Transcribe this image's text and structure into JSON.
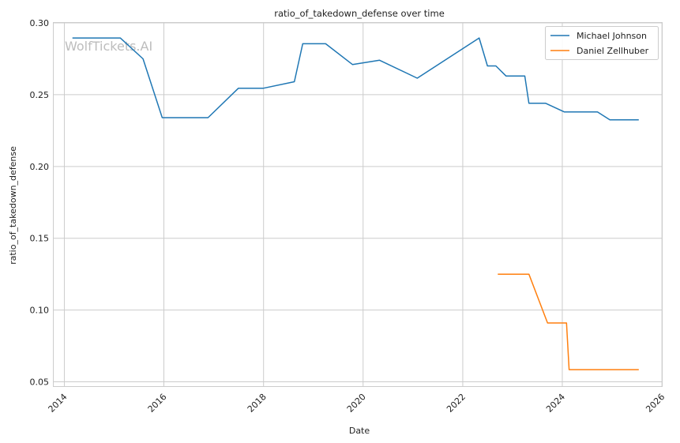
{
  "watermark": "WolfTickets.AI",
  "chart_data": {
    "type": "line",
    "title": "ratio_of_takedown_defense over time",
    "xlabel": "Date",
    "ylabel": "ratio_of_takedown_defense",
    "xlim": [
      "2013-10-15",
      "2025-12-31"
    ],
    "ylim": [
      0.047,
      0.3
    ],
    "xticks": [
      "2014",
      "2016",
      "2018",
      "2020",
      "2022",
      "2024",
      "2026"
    ],
    "yticks": [
      "0.05",
      "0.10",
      "0.15",
      "0.20",
      "0.25",
      "0.30"
    ],
    "grid": true,
    "legend_position": "top-right",
    "series": [
      {
        "name": "Michael Johnson",
        "color": "#1f77b4",
        "points": [
          [
            "2014-03-01",
            0.2895
          ],
          [
            "2015-02-15",
            0.2895
          ],
          [
            "2015-08-01",
            0.275
          ],
          [
            "2015-12-20",
            0.234
          ],
          [
            "2016-11-20",
            0.234
          ],
          [
            "2017-07-01",
            0.2545
          ],
          [
            "2018-01-01",
            0.2545
          ],
          [
            "2018-08-15",
            0.259
          ],
          [
            "2018-10-15",
            0.2855
          ],
          [
            "2019-04-01",
            0.2855
          ],
          [
            "2019-10-15",
            0.271
          ],
          [
            "2020-05-01",
            0.274
          ],
          [
            "2021-02-01",
            0.2615
          ],
          [
            "2022-05-01",
            0.2895
          ],
          [
            "2022-07-01",
            0.27
          ],
          [
            "2022-09-01",
            0.27
          ],
          [
            "2022-11-15",
            0.263
          ],
          [
            "2023-04-01",
            0.263
          ],
          [
            "2023-05-01",
            0.244
          ],
          [
            "2023-09-01",
            0.244
          ],
          [
            "2024-01-15",
            0.238
          ],
          [
            "2024-09-15",
            0.238
          ],
          [
            "2024-12-15",
            0.2325
          ],
          [
            "2025-07-15",
            0.2325
          ]
        ]
      },
      {
        "name": "Daniel Zellhuber",
        "color": "#ff7f0e",
        "points": [
          [
            "2022-09-15",
            0.125
          ],
          [
            "2023-05-01",
            0.125
          ],
          [
            "2023-09-15",
            0.091
          ],
          [
            "2024-02-01",
            0.091
          ],
          [
            "2024-02-20",
            0.0585
          ],
          [
            "2025-07-15",
            0.0585
          ]
        ]
      }
    ]
  }
}
